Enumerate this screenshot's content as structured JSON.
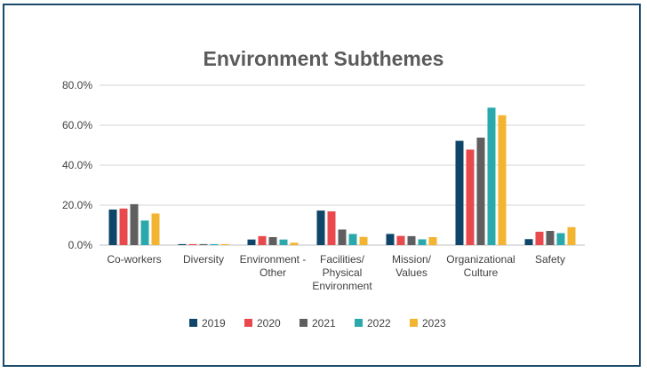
{
  "chart_data": {
    "type": "bar",
    "title": "Environment Subthemes",
    "xlabel": "",
    "ylabel": "",
    "ylim": [
      0,
      80
    ],
    "yticks": [
      "0.0%",
      "20.0%",
      "40.0%",
      "60.0%",
      "80.0%"
    ],
    "ytick_values": [
      0,
      20,
      40,
      60,
      80
    ],
    "grid": true,
    "legend_position": "bottom",
    "categories": [
      [
        "Co-workers"
      ],
      [
        "Diversity"
      ],
      [
        "Environment -",
        "Other"
      ],
      [
        "Facilities/",
        "Physical",
        "Environment"
      ],
      [
        "Mission/",
        "Values"
      ],
      [
        "Organizational",
        "Culture"
      ],
      [
        "Safety"
      ]
    ],
    "series": [
      {
        "name": "2019",
        "color": "#0e4568",
        "values": [
          17.8,
          0.5,
          2.8,
          17.3,
          5.6,
          52.2,
          3.0
        ]
      },
      {
        "name": "2020",
        "color": "#e8494d",
        "values": [
          18.3,
          0.5,
          4.5,
          16.9,
          4.6,
          47.8,
          6.7
        ]
      },
      {
        "name": "2021",
        "color": "#5f5f5f",
        "values": [
          20.5,
          0.5,
          4.0,
          7.8,
          4.5,
          53.8,
          7.1
        ]
      },
      {
        "name": "2022",
        "color": "#2aa9ad",
        "values": [
          12.3,
          0.5,
          2.8,
          5.6,
          2.9,
          68.8,
          6.0
        ]
      },
      {
        "name": "2023",
        "color": "#f3b431",
        "values": [
          15.8,
          0.5,
          1.2,
          4.1,
          4.0,
          65.0,
          9.0
        ]
      }
    ]
  }
}
